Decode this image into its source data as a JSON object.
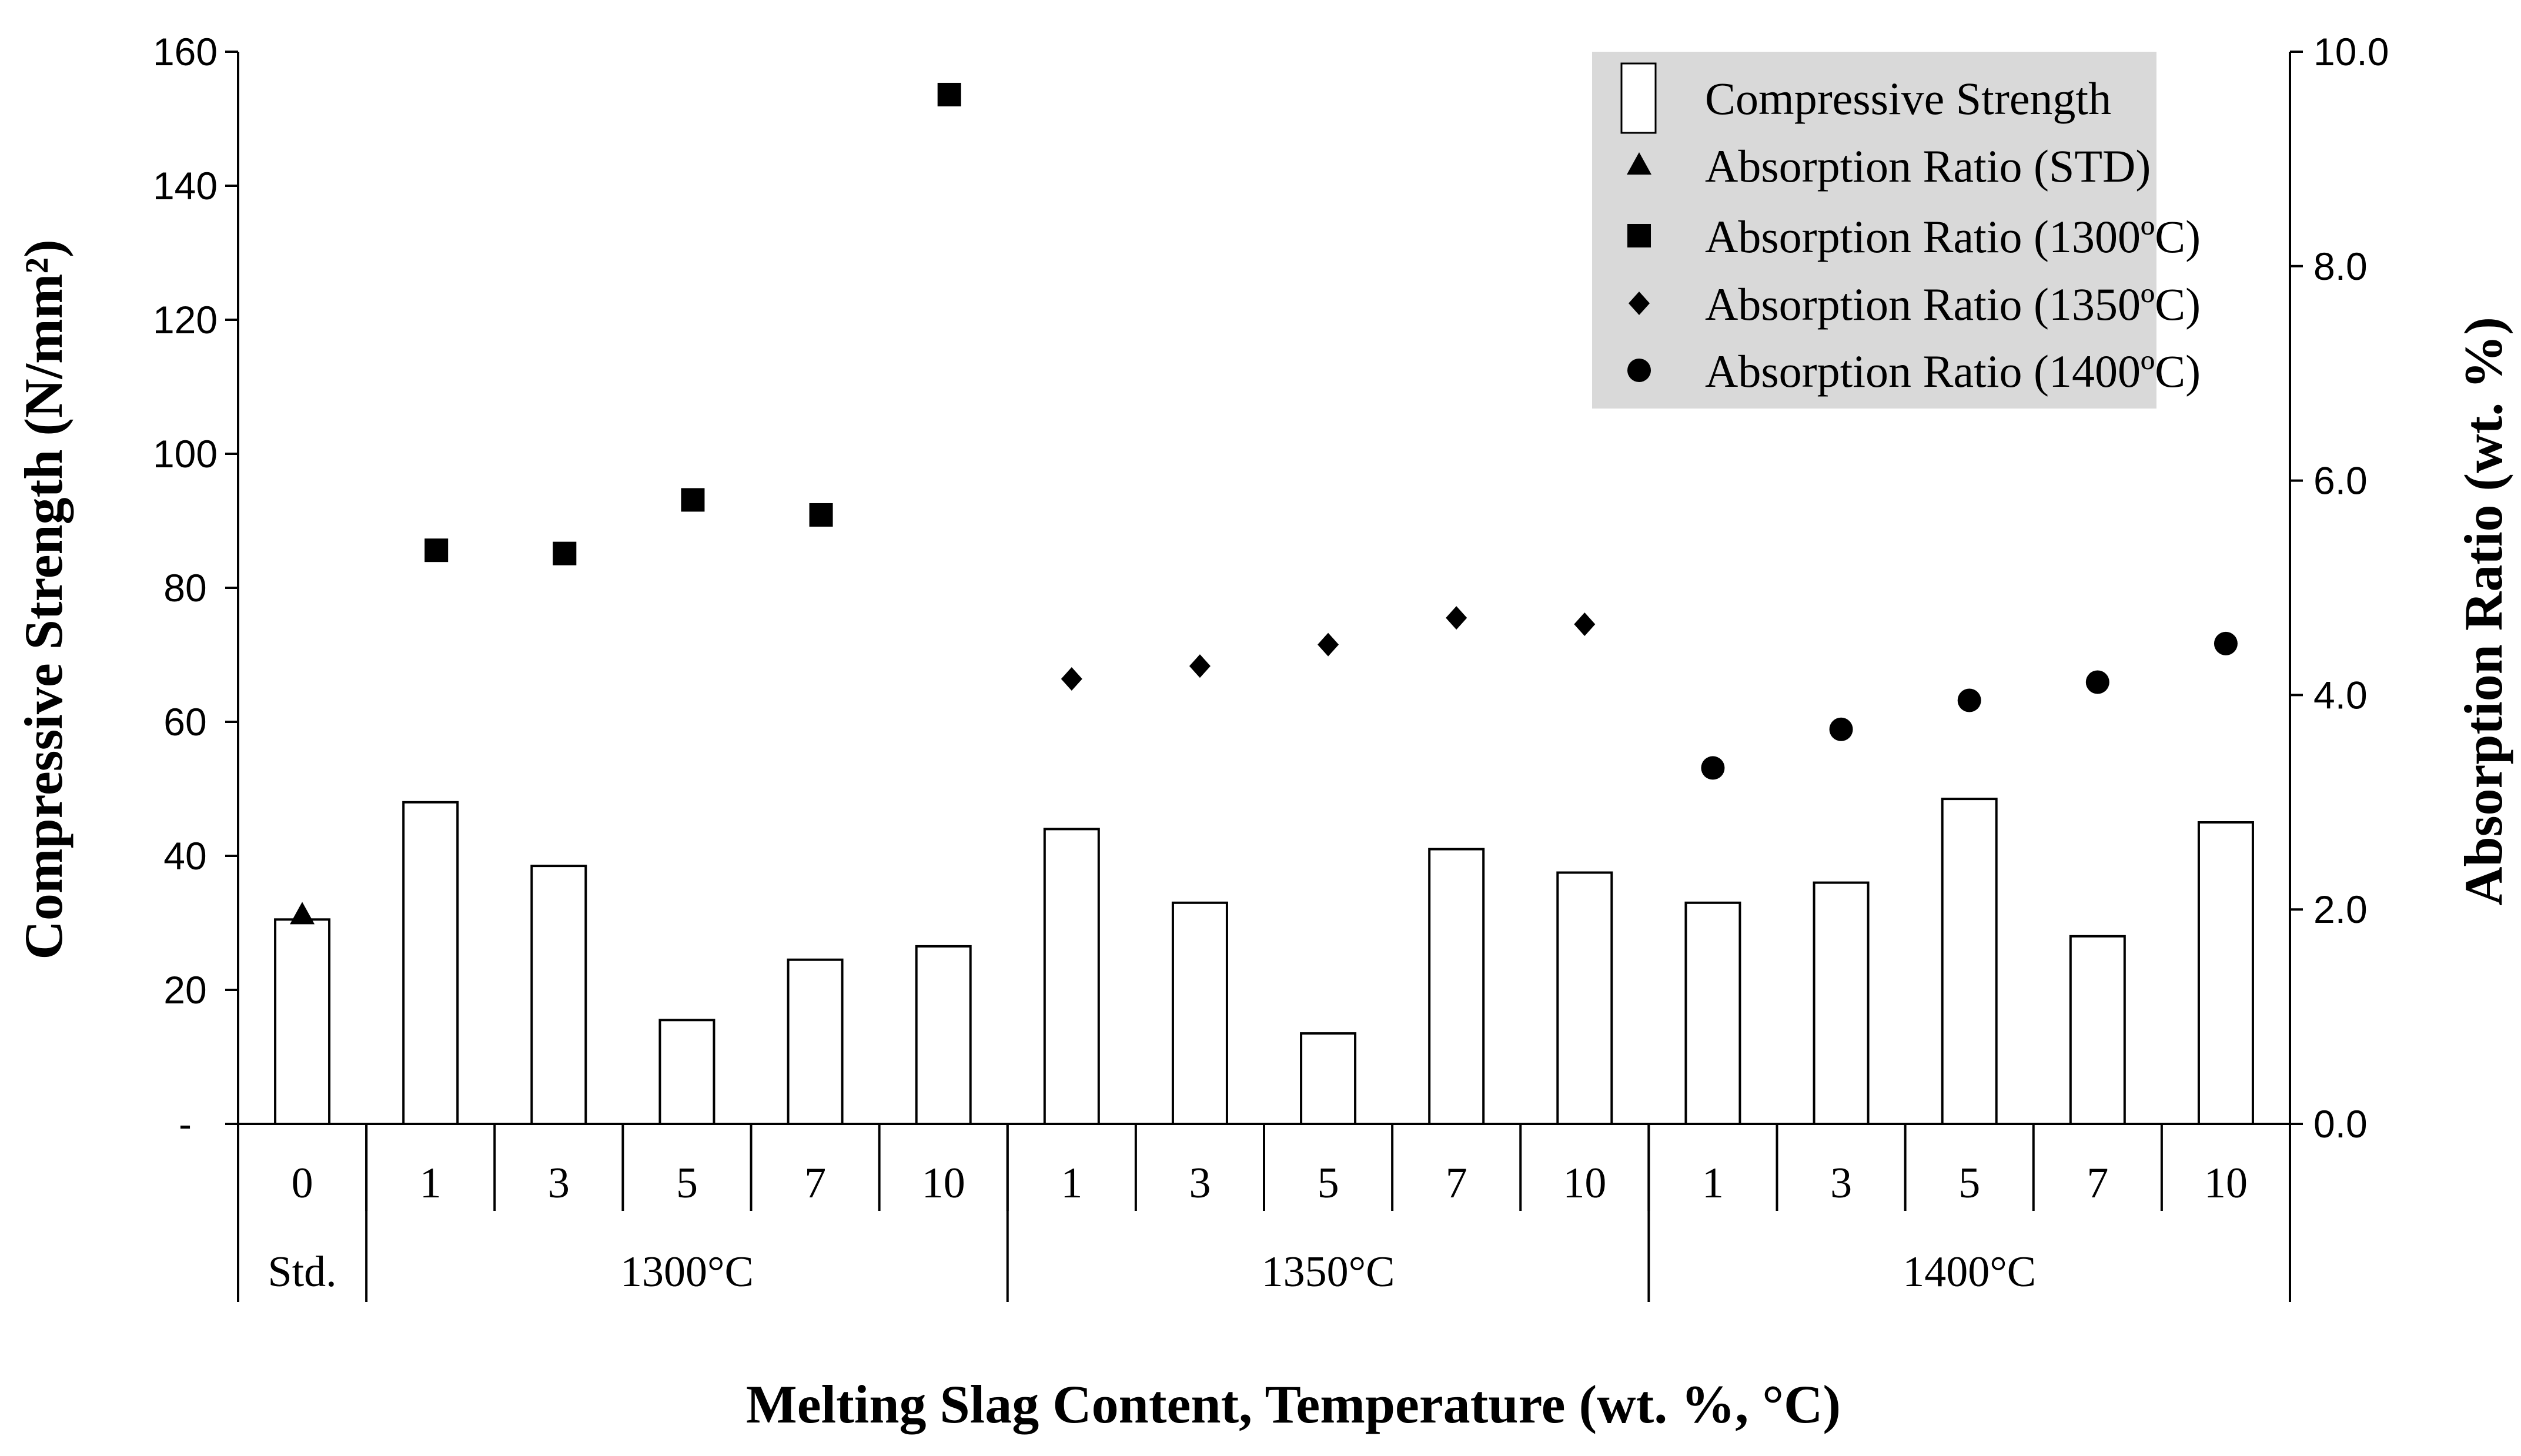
{
  "chart_data": {
    "type": "bar",
    "title": "",
    "xlabel": "Melting Slag Content, Temperature (wt. %, °C)",
    "ylabel_left": "Compressive Strength (N/mm²)",
    "ylabel_right": "Absorption Ratio (wt. %)",
    "ylim_left": [
      0,
      160
    ],
    "ylim_right": [
      0,
      10
    ],
    "left_ticks": [
      {
        "value": 0,
        "label": "-"
      },
      {
        "value": 20,
        "label": "20"
      },
      {
        "value": 40,
        "label": "40"
      },
      {
        "value": 60,
        "label": "60"
      },
      {
        "value": 80,
        "label": "80"
      },
      {
        "value": 100,
        "label": "100"
      },
      {
        "value": 120,
        "label": "120"
      },
      {
        "value": 140,
        "label": "140"
      },
      {
        "value": 160,
        "label": "160"
      }
    ],
    "right_ticks": [
      {
        "value": 0,
        "label": "0.0"
      },
      {
        "value": 2,
        "label": "2.0"
      },
      {
        "value": 4,
        "label": "4.0"
      },
      {
        "value": 6,
        "label": "6.0"
      },
      {
        "value": 8,
        "label": "8.0"
      },
      {
        "value": 10,
        "label": "10.0"
      }
    ],
    "categories": [
      "0",
      "1",
      "3",
      "5",
      "7",
      "10",
      "1",
      "3",
      "5",
      "7",
      "10",
      "1",
      "3",
      "5",
      "7",
      "10"
    ],
    "groups": [
      {
        "label": "Std.",
        "count": 1
      },
      {
        "label": "1300°C",
        "count": 5
      },
      {
        "label": "1350°C",
        "count": 5
      },
      {
        "label": "1400°C",
        "count": 5
      }
    ],
    "series": [
      {
        "name": "Compressive Strength",
        "kind": "bar",
        "axis": "left",
        "values": [
          30.5,
          48,
          38.5,
          15.5,
          24.5,
          26.5,
          44,
          33,
          13.5,
          41,
          37.5,
          33,
          36,
          48.5,
          28,
          45
        ]
      },
      {
        "name": "Absorption Ratio (STD)",
        "kind": "scatter",
        "marker": "triangle",
        "axis": "right",
        "values": [
          1.95,
          null,
          null,
          null,
          null,
          null,
          null,
          null,
          null,
          null,
          null,
          null,
          null,
          null,
          null,
          null
        ]
      },
      {
        "name": "Absorption Ratio (1300ºC)",
        "kind": "scatter",
        "marker": "square",
        "axis": "right",
        "values": [
          null,
          5.35,
          5.32,
          5.82,
          5.68,
          9.6,
          null,
          null,
          null,
          null,
          null,
          null,
          null,
          null,
          null,
          null
        ]
      },
      {
        "name": "Absorption Ratio (1350ºC)",
        "kind": "scatter",
        "marker": "diamond",
        "axis": "right",
        "values": [
          null,
          null,
          null,
          null,
          null,
          null,
          4.15,
          4.27,
          4.47,
          4.72,
          4.66,
          null,
          null,
          null,
          null,
          null
        ]
      },
      {
        "name": "Absorption Ratio (1400ºC)",
        "kind": "scatter",
        "marker": "circle",
        "axis": "right",
        "values": [
          null,
          null,
          null,
          null,
          null,
          null,
          null,
          null,
          null,
          null,
          null,
          3.32,
          3.68,
          3.95,
          4.12,
          4.48
        ]
      }
    ],
    "legend_position": "top-right",
    "colors": {
      "bar_fill": "#ffffff",
      "bar_stroke": "#000000",
      "marker": "#000000",
      "legend_bg": "#d9d9d9"
    }
  }
}
